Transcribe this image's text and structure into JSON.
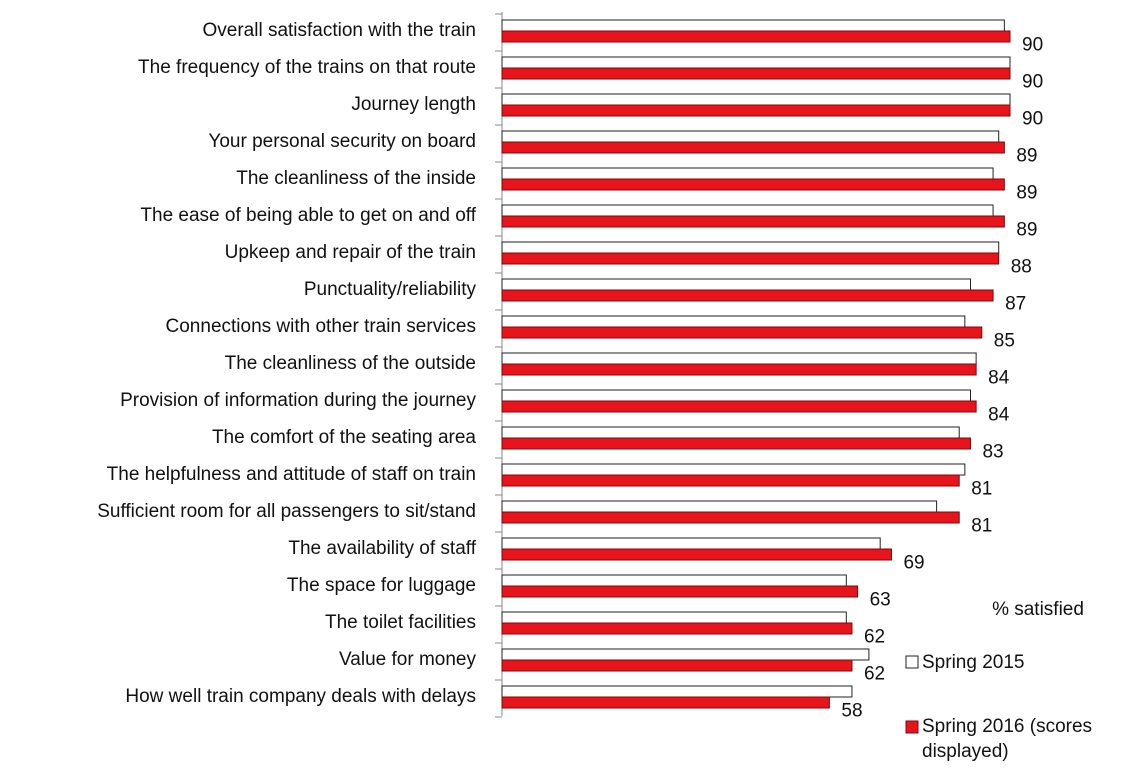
{
  "chart_data": {
    "type": "hbar",
    "annotation": "% satisfied",
    "categories": [
      "Overall satisfaction with the train",
      "The frequency of the trains on that route",
      "Journey length",
      "Your personal security on board",
      "The cleanliness of the inside",
      "The ease of being able to get on and off",
      "Upkeep and repair of the train",
      "Punctuality/reliability",
      "Connections with other train services",
      "The cleanliness of the outside",
      "Provision of information during the journey",
      "The comfort of the seating area",
      "The helpfulness and attitude of staff on train",
      "Sufficient room for all passengers to sit/stand",
      "The availability of staff",
      "The space for luggage",
      "The toilet facilities",
      "Value for money",
      "How well train company deals with delays"
    ],
    "series": [
      {
        "name": "Spring 2015",
        "color": "#ffffff",
        "values": [
          89,
          90,
          90,
          88,
          87,
          87,
          88,
          83,
          82,
          84,
          83,
          81,
          82,
          77,
          67,
          61,
          61,
          65,
          62
        ]
      },
      {
        "name": "Spring 2016 (scores displayed)",
        "color": "#e8141c",
        "values": [
          90,
          90,
          90,
          89,
          89,
          89,
          88,
          87,
          85,
          84,
          84,
          83,
          81,
          81,
          69,
          63,
          62,
          62,
          58
        ]
      }
    ],
    "xlim": [
      0,
      90
    ],
    "data_labels_series": 1
  }
}
